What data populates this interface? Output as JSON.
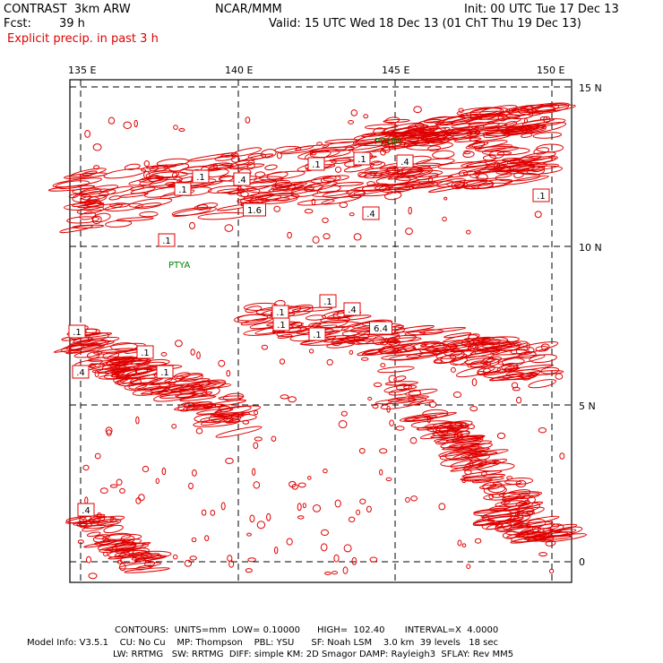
{
  "header": {
    "model": "CONTRAST  3km ARW",
    "org": "NCAR/MMM",
    "init": "Init: 00 UTC Tue 17 Dec 13",
    "fcst_label": "Fcst:",
    "fcst_value": "39 h",
    "valid": "Valid: 15 UTC Wed 18 Dec 13 (01 ChT Thu 19 Dec 13)",
    "field": "Explicit precip. in past 3 h"
  },
  "axes": {
    "lon_labels": [
      "135 E",
      "140 E",
      "145 E",
      "150 E"
    ],
    "lat_labels": [
      "15 N",
      "10 N",
      "5 N",
      "0"
    ]
  },
  "places": [
    "PGUM",
    "PTYA"
  ],
  "contour_labels": [
    ".1",
    ".1",
    ".4",
    ".1",
    ".1",
    ".4",
    ".1",
    "1.6",
    ".4",
    ".1",
    ".1",
    ".4",
    ".1",
    ".1",
    ".1",
    "6.4",
    ".1",
    ".1",
    ".4",
    ".4",
    ".1"
  ],
  "contours": {
    "text": "CONTOURS:  UNITS=mm  LOW= 0.10000      HIGH=  102.40       INTERVAL=X  4.0000"
  },
  "model_info": {
    "line1": "Model Info: V3.5.1    CU: No Cu    MP: Thompson    PBL: YSU      SF: Noah LSM    3.0 km  39 levels   18 sec",
    "line2": "LW: RRTMG   SW: RRTMG  DIFF: simple KM: 2D Smagor DAMP: Rayleigh3  SFLAY: Rev MM5"
  },
  "colors": {
    "precip": "#e00000",
    "station": "#008000",
    "frame": "#000000"
  }
}
